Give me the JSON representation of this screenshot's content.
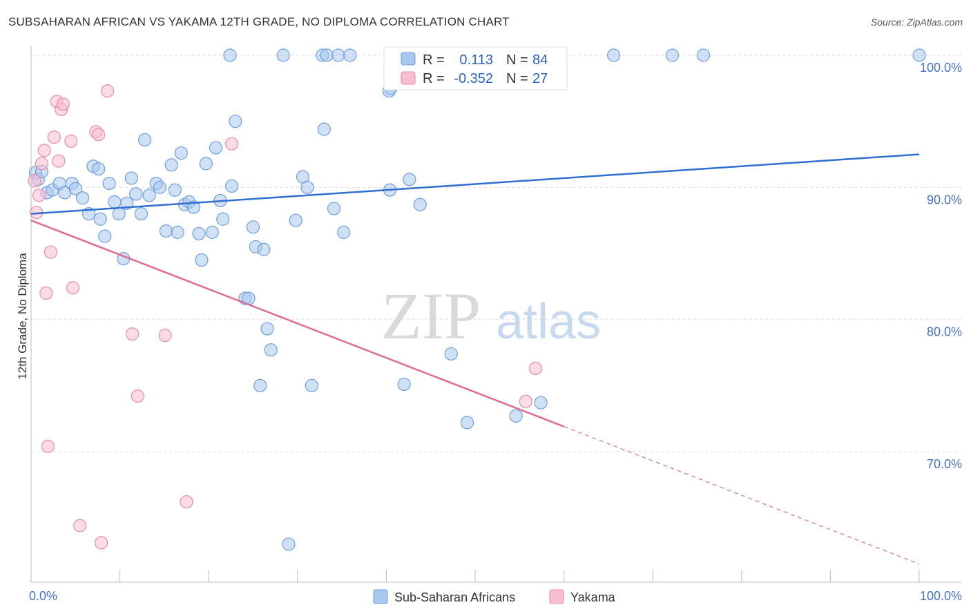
{
  "header": {
    "title": "SUBSAHARAN AFRICAN VS YAKAMA 12TH GRADE, NO DIPLOMA CORRELATION CHART",
    "source": "Source: ZipAtlas.com"
  },
  "watermark": {
    "zip": "ZIP",
    "atlas": "atlas"
  },
  "legend_box": {
    "rows": [
      {
        "r_label": "R =",
        "r_value": "0.113",
        "n_label": "N =",
        "n_value": "84",
        "color": "#a9c8ef",
        "stroke": "#6d9ee0"
      },
      {
        "r_label": "R =",
        "r_value": "-0.352",
        "n_label": "N =",
        "n_value": "27",
        "color": "#f7bed0",
        "stroke": "#e98aa9"
      }
    ]
  },
  "colors": {
    "blue_fill": "#a9c8ef",
    "blue_stroke": "#6d9ee0",
    "blue_line": "#2e6fd1",
    "pink_fill": "#f7bed0",
    "pink_stroke": "#e98aa9",
    "pink_line": "#e06a96",
    "grid": "#dddddd",
    "axis_text": "#4472c4"
  },
  "chart_data": {
    "type": "scatter",
    "title": "SUBSAHARAN AFRICAN VS YAKAMA 12TH GRADE, NO DIPLOMA CORRELATION CHART",
    "xlabel": "",
    "ylabel": "12th Grade, No Diploma",
    "xlim": [
      0,
      100
    ],
    "ylim": [
      60,
      102
    ],
    "x_tick_labels": [
      "0.0%",
      "100.0%"
    ],
    "y_ticks": [
      70,
      80,
      90,
      100
    ],
    "y_tick_labels": [
      "70.0%",
      "80.0%",
      "90.0%",
      "100.0%"
    ],
    "grid": true,
    "legend_position": "bottom",
    "series": [
      {
        "name": "Sub-Saharan Africans",
        "color": "#a9c8ef",
        "trend": {
          "x": [
            0,
            100
          ],
          "y": [
            88.0,
            92.5
          ],
          "dashed_after": null
        },
        "points": [
          [
            0.5,
            91.1
          ],
          [
            0.8,
            90.6
          ],
          [
            1.2,
            91.2
          ],
          [
            1.8,
            89.6
          ],
          [
            2.4,
            89.8
          ],
          [
            3.2,
            90.3
          ],
          [
            3.8,
            89.6
          ],
          [
            4.6,
            90.3
          ],
          [
            5.0,
            89.9
          ],
          [
            5.8,
            89.2
          ],
          [
            6.5,
            88.0
          ],
          [
            7.0,
            91.6
          ],
          [
            7.6,
            91.4
          ],
          [
            7.8,
            87.6
          ],
          [
            8.3,
            86.3
          ],
          [
            8.8,
            90.3
          ],
          [
            9.4,
            88.9
          ],
          [
            9.9,
            88.0
          ],
          [
            10.4,
            84.6
          ],
          [
            10.8,
            88.8
          ],
          [
            11.3,
            90.7
          ],
          [
            11.8,
            89.5
          ],
          [
            12.4,
            88.0
          ],
          [
            12.8,
            93.6
          ],
          [
            13.3,
            89.4
          ],
          [
            14.1,
            90.3
          ],
          [
            14.5,
            90.0
          ],
          [
            15.2,
            86.7
          ],
          [
            15.8,
            91.7
          ],
          [
            16.2,
            89.8
          ],
          [
            16.5,
            86.6
          ],
          [
            16.9,
            92.6
          ],
          [
            17.3,
            88.7
          ],
          [
            17.8,
            88.9
          ],
          [
            18.3,
            88.5
          ],
          [
            18.9,
            86.5
          ],
          [
            19.2,
            84.5
          ],
          [
            19.7,
            91.8
          ],
          [
            20.4,
            86.6
          ],
          [
            20.8,
            93.0
          ],
          [
            21.3,
            89.0
          ],
          [
            21.6,
            87.6
          ],
          [
            22.6,
            90.1
          ],
          [
            23.0,
            95.0
          ],
          [
            24.1,
            81.6
          ],
          [
            24.5,
            81.6
          ],
          [
            25.0,
            87.0
          ],
          [
            25.3,
            85.5
          ],
          [
            25.8,
            75.0
          ],
          [
            26.2,
            85.3
          ],
          [
            26.6,
            79.3
          ],
          [
            27.0,
            77.7
          ],
          [
            29.0,
            63.0
          ],
          [
            29.8,
            87.5
          ],
          [
            30.6,
            90.8
          ],
          [
            31.1,
            90.0
          ],
          [
            31.6,
            75.0
          ],
          [
            33.0,
            94.4
          ],
          [
            34.1,
            88.4
          ],
          [
            35.2,
            86.6
          ],
          [
            22.4,
            100.0
          ],
          [
            28.4,
            100.0
          ],
          [
            32.8,
            100.0
          ],
          [
            33.3,
            100.0
          ],
          [
            34.6,
            100.0
          ],
          [
            35.9,
            100.0
          ],
          [
            46.0,
            100.0
          ],
          [
            65.6,
            100.0
          ],
          [
            72.2,
            100.0
          ],
          [
            75.7,
            100.0
          ],
          [
            100.0,
            100.0
          ],
          [
            40.3,
            97.3
          ],
          [
            40.5,
            97.5
          ],
          [
            55.0,
            99.0
          ],
          [
            42.0,
            75.1
          ],
          [
            40.4,
            89.8
          ],
          [
            42.6,
            90.6
          ],
          [
            43.8,
            88.7
          ],
          [
            47.3,
            77.4
          ],
          [
            49.1,
            72.2
          ],
          [
            54.6,
            72.7
          ],
          [
            55.1,
            98.8
          ],
          [
            57.4,
            73.7
          ],
          [
            52.0,
            99.3
          ]
        ]
      },
      {
        "name": "Yakama",
        "color": "#f7bed0",
        "trend": {
          "x": [
            0,
            100
          ],
          "y": [
            87.5,
            61.5
          ],
          "dashed_after": 60
        },
        "points": [
          [
            0.4,
            90.5
          ],
          [
            0.6,
            88.1
          ],
          [
            0.9,
            89.4
          ],
          [
            1.2,
            91.8
          ],
          [
            1.5,
            92.8
          ],
          [
            1.7,
            82.0
          ],
          [
            1.9,
            70.4
          ],
          [
            2.2,
            85.1
          ],
          [
            2.6,
            93.8
          ],
          [
            2.9,
            96.5
          ],
          [
            3.1,
            92.0
          ],
          [
            3.4,
            95.9
          ],
          [
            3.6,
            96.3
          ],
          [
            4.5,
            93.5
          ],
          [
            4.7,
            82.4
          ],
          [
            5.5,
            64.4
          ],
          [
            7.3,
            94.2
          ],
          [
            7.6,
            94.0
          ],
          [
            7.9,
            63.1
          ],
          [
            8.6,
            97.3
          ],
          [
            11.4,
            78.9
          ],
          [
            12.0,
            74.2
          ],
          [
            15.1,
            78.8
          ],
          [
            17.5,
            66.2
          ],
          [
            22.6,
            93.3
          ],
          [
            55.7,
            73.8
          ],
          [
            56.8,
            76.3
          ]
        ]
      }
    ]
  },
  "bottom_legend": {
    "items": [
      {
        "label": "Sub-Saharan Africans",
        "color": "#a9c8ef",
        "stroke": "#6d9ee0"
      },
      {
        "label": "Yakama",
        "color": "#f7bed0",
        "stroke": "#e98aa9"
      }
    ]
  }
}
